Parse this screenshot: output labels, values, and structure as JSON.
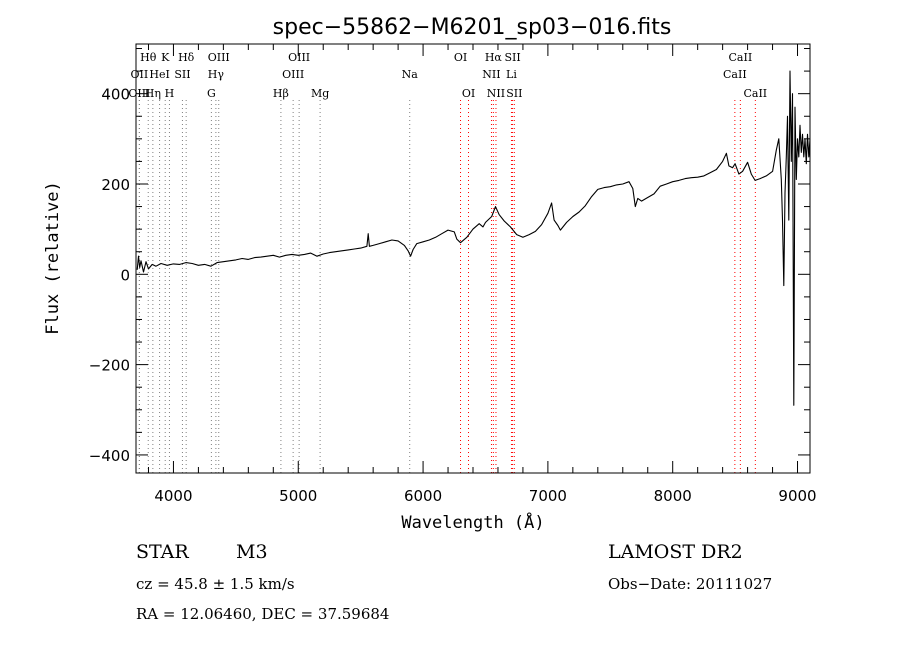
{
  "chart_data": {
    "type": "line",
    "title": "spec−55862−M6201_sp03−016.fits",
    "xlabel": "Wavelength (Å)",
    "ylabel": "Flux (relative)",
    "xlim": [
      3700,
      9100
    ],
    "ylim": [
      -440,
      510
    ],
    "x_ticks": [
      4000,
      5000,
      6000,
      7000,
      8000,
      9000
    ],
    "x_tick_labels": [
      "4000",
      "5000",
      "6000",
      "7000",
      "8000",
      "9000"
    ],
    "y_ticks": [
      -400,
      -200,
      0,
      200,
      400
    ],
    "y_tick_labels": [
      "−400",
      "−200",
      "0",
      "200",
      "400"
    ],
    "grid": false,
    "series": [
      {
        "color": "#000000",
        "points": [
          [
            3710,
            10
          ],
          [
            3720,
            40
          ],
          [
            3730,
            15
          ],
          [
            3740,
            30
          ],
          [
            3760,
            5
          ],
          [
            3780,
            28
          ],
          [
            3800,
            12
          ],
          [
            3830,
            22
          ],
          [
            3860,
            18
          ],
          [
            3900,
            24
          ],
          [
            3950,
            20
          ],
          [
            4000,
            23
          ],
          [
            4050,
            22
          ],
          [
            4100,
            26
          ],
          [
            4150,
            24
          ],
          [
            4200,
            20
          ],
          [
            4250,
            22
          ],
          [
            4300,
            18
          ],
          [
            4350,
            26
          ],
          [
            4400,
            28
          ],
          [
            4450,
            30
          ],
          [
            4500,
            32
          ],
          [
            4550,
            35
          ],
          [
            4600,
            33
          ],
          [
            4650,
            37
          ],
          [
            4700,
            38
          ],
          [
            4750,
            40
          ],
          [
            4800,
            42
          ],
          [
            4850,
            38
          ],
          [
            4900,
            42
          ],
          [
            4950,
            44
          ],
          [
            5000,
            42
          ],
          [
            5050,
            44
          ],
          [
            5100,
            47
          ],
          [
            5150,
            40
          ],
          [
            5200,
            45
          ],
          [
            5250,
            48
          ],
          [
            5300,
            50
          ],
          [
            5350,
            52
          ],
          [
            5400,
            54
          ],
          [
            5450,
            56
          ],
          [
            5500,
            58
          ],
          [
            5550,
            62
          ],
          [
            5560,
            90
          ],
          [
            5570,
            62
          ],
          [
            5600,
            64
          ],
          [
            5650,
            68
          ],
          [
            5700,
            72
          ],
          [
            5750,
            76
          ],
          [
            5800,
            74
          ],
          [
            5850,
            64
          ],
          [
            5880,
            52
          ],
          [
            5900,
            40
          ],
          [
            5920,
            55
          ],
          [
            5950,
            68
          ],
          [
            6000,
            72
          ],
          [
            6050,
            76
          ],
          [
            6100,
            82
          ],
          [
            6150,
            90
          ],
          [
            6200,
            98
          ],
          [
            6250,
            94
          ],
          [
            6270,
            78
          ],
          [
            6300,
            70
          ],
          [
            6350,
            82
          ],
          [
            6400,
            100
          ],
          [
            6450,
            112
          ],
          [
            6480,
            105
          ],
          [
            6500,
            115
          ],
          [
            6550,
            128
          ],
          [
            6580,
            150
          ],
          [
            6610,
            132
          ],
          [
            6650,
            118
          ],
          [
            6700,
            105
          ],
          [
            6750,
            88
          ],
          [
            6800,
            82
          ],
          [
            6850,
            88
          ],
          [
            6900,
            95
          ],
          [
            6950,
            110
          ],
          [
            7000,
            135
          ],
          [
            7030,
            158
          ],
          [
            7050,
            120
          ],
          [
            7080,
            108
          ],
          [
            7100,
            98
          ],
          [
            7150,
            115
          ],
          [
            7200,
            128
          ],
          [
            7250,
            138
          ],
          [
            7300,
            152
          ],
          [
            7350,
            172
          ],
          [
            7400,
            188
          ],
          [
            7450,
            192
          ],
          [
            7500,
            194
          ],
          [
            7550,
            198
          ],
          [
            7600,
            200
          ],
          [
            7650,
            205
          ],
          [
            7680,
            190
          ],
          [
            7700,
            150
          ],
          [
            7720,
            168
          ],
          [
            7750,
            162
          ],
          [
            7800,
            170
          ],
          [
            7850,
            178
          ],
          [
            7900,
            195
          ],
          [
            7950,
            200
          ],
          [
            8000,
            205
          ],
          [
            8050,
            208
          ],
          [
            8100,
            212
          ],
          [
            8150,
            214
          ],
          [
            8200,
            215
          ],
          [
            8250,
            218
          ],
          [
            8300,
            225
          ],
          [
            8350,
            232
          ],
          [
            8400,
            250
          ],
          [
            8430,
            268
          ],
          [
            8450,
            240
          ],
          [
            8480,
            236
          ],
          [
            8500,
            245
          ],
          [
            8530,
            222
          ],
          [
            8560,
            228
          ],
          [
            8600,
            248
          ],
          [
            8630,
            222
          ],
          [
            8660,
            208
          ],
          [
            8700,
            212
          ],
          [
            8750,
            218
          ],
          [
            8800,
            228
          ],
          [
            8830,
            275
          ],
          [
            8850,
            300
          ],
          [
            8870,
            210
          ],
          [
            8880,
            120
          ],
          [
            8890,
            -25
          ],
          [
            8900,
            180
          ],
          [
            8910,
            260
          ],
          [
            8920,
            350
          ],
          [
            8930,
            120
          ],
          [
            8940,
            450
          ],
          [
            8950,
            250
          ],
          [
            8960,
            400
          ],
          [
            8970,
            -290
          ],
          [
            8980,
            370
          ],
          [
            8990,
            210
          ],
          [
            9000,
            300
          ],
          [
            9010,
            260
          ],
          [
            9020,
            330
          ],
          [
            9030,
            270
          ],
          [
            9040,
            310
          ],
          [
            9050,
            260
          ],
          [
            9060,
            300
          ],
          [
            9070,
            245
          ],
          [
            9080,
            310
          ],
          [
            9090,
            260
          ],
          [
            9100,
            300
          ]
        ]
      }
    ],
    "spectral_lines": [
      {
        "label": "Hθ",
        "x": 3798,
        "row": 0,
        "color": "#808080"
      },
      {
        "label": "OII",
        "x": 3727,
        "row": 1,
        "color": "#808080"
      },
      {
        "label": "OIII",
        "x": 3727,
        "row": 2,
        "color": "#808080"
      },
      {
        "label": "K",
        "x": 3934,
        "row": 0,
        "color": "#808080"
      },
      {
        "label": "HeI",
        "x": 3889,
        "row": 1,
        "color": "#808080"
      },
      {
        "label": "Hη",
        "x": 3835,
        "row": 2,
        "color": "#808080"
      },
      {
        "label": "H",
        "x": 3968,
        "row": 2,
        "color": "#808080"
      },
      {
        "label": "SII",
        "x": 4072,
        "row": 1,
        "color": "#808080"
      },
      {
        "label": "Hδ",
        "x": 4102,
        "row": 0,
        "color": "#808080"
      },
      {
        "label": "OIII",
        "x": 4363,
        "row": 0,
        "color": "#808080"
      },
      {
        "label": "Hγ",
        "x": 4340,
        "row": 1,
        "color": "#808080"
      },
      {
        "label": "G",
        "x": 4304,
        "row": 2,
        "color": "#808080"
      },
      {
        "label": "OIII",
        "x": 5007,
        "row": 0,
        "color": "#808080"
      },
      {
        "label": "OIII",
        "x": 4959,
        "row": 1,
        "color": "#808080"
      },
      {
        "label": "Hβ",
        "x": 4861,
        "row": 2,
        "color": "#808080"
      },
      {
        "label": "Mg",
        "x": 5175,
        "row": 2,
        "color": "#808080"
      },
      {
        "label": "Na",
        "x": 5893,
        "row": 1,
        "color": "#808080"
      },
      {
        "label": "OI",
        "x": 6300,
        "row": 0,
        "color": "#ff0000"
      },
      {
        "label": "OI",
        "x": 6364,
        "row": 2,
        "color": "#ff0000"
      },
      {
        "label": "Hα",
        "x": 6563,
        "row": 0,
        "color": "#ff0000"
      },
      {
        "label": "NII",
        "x": 6548,
        "row": 1,
        "color": "#ff0000"
      },
      {
        "label": "NII",
        "x": 6584,
        "row": 2,
        "color": "#ff0000"
      },
      {
        "label": "SII",
        "x": 6717,
        "row": 0,
        "color": "#ff0000"
      },
      {
        "label": "Li",
        "x": 6708,
        "row": 1,
        "color": "#ff0000"
      },
      {
        "label": "SII",
        "x": 6731,
        "row": 2,
        "color": "#ff0000"
      },
      {
        "label": "CaII",
        "x": 8542,
        "row": 0,
        "color": "#ff0000"
      },
      {
        "label": "CaII",
        "x": 8498,
        "row": 1,
        "color": "#ff0000"
      },
      {
        "label": "CaII",
        "x": 8662,
        "row": 2,
        "color": "#ff0000"
      }
    ]
  },
  "footer": {
    "object_class": "STAR",
    "subclass": "M3",
    "survey": "LAMOST DR2",
    "redshift": "cz = 45.8 ± 1.5 km/s",
    "obs_date": "Obs−Date: 20111027",
    "coords": "RA =  12.06460, DEC =  37.59684"
  }
}
